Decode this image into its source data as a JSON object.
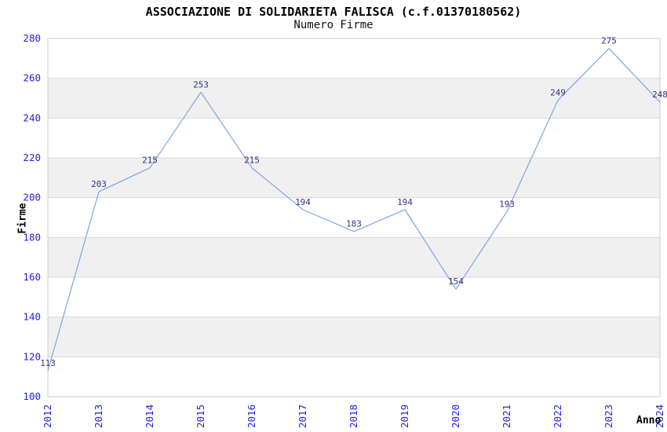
{
  "chart_data": {
    "type": "line",
    "title": "ASSOCIAZIONE DI SOLIDARIETA FALISCA (c.f.01370180562)",
    "subtitle": "Numero Firme",
    "xlabel": "Anno",
    "ylabel": "Firme",
    "categories": [
      "2012",
      "2013",
      "2014",
      "2015",
      "2016",
      "2017",
      "2018",
      "2019",
      "2020",
      "2021",
      "2022",
      "2023",
      "2024"
    ],
    "values": [
      113,
      203,
      215,
      253,
      215,
      194,
      183,
      194,
      154,
      193,
      249,
      275,
      248
    ],
    "ylim": [
      100,
      280
    ],
    "y_ticks": [
      100,
      120,
      140,
      160,
      180,
      200,
      220,
      240,
      260,
      280
    ],
    "grid": true,
    "legend": "none",
    "layout": {
      "bands_alternating": true
    },
    "colors": {
      "line": "#7ea6e0",
      "data_label": "#333380",
      "tick_label": "#2222dd",
      "band": "#f0f0f0",
      "grid": "#d9d9d9",
      "border": "#cccccc",
      "title": "#000000"
    }
  }
}
